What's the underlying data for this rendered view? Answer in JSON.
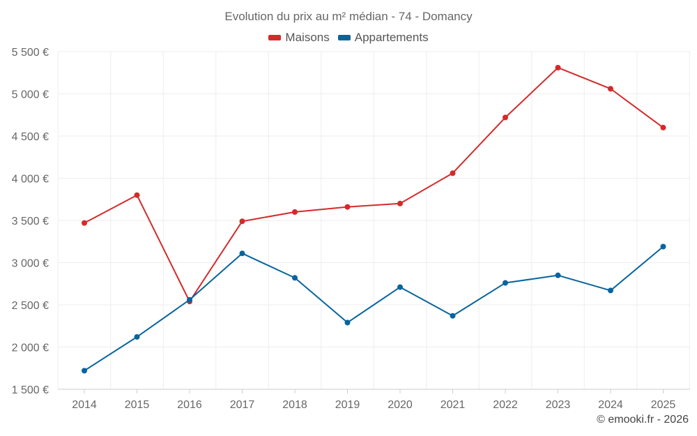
{
  "chart_data": {
    "type": "line",
    "title": "Evolution du prix au m² médian - 74 - Domancy",
    "xlabel": "",
    "ylabel": "",
    "categories": [
      "2014",
      "2015",
      "2016",
      "2017",
      "2018",
      "2019",
      "2020",
      "2021",
      "2022",
      "2023",
      "2024",
      "2025"
    ],
    "ylim": [
      1500,
      5500
    ],
    "yticks": [
      1500,
      2000,
      2500,
      3000,
      3500,
      4000,
      4500,
      5000,
      5500
    ],
    "ytick_labels": [
      "1 500 €",
      "2 000 €",
      "2 500 €",
      "3 000 €",
      "3 500 €",
      "4 000 €",
      "4 500 €",
      "5 000 €",
      "5 500 €"
    ],
    "series": [
      {
        "name": "Maisons",
        "color": "#d42a2a",
        "values": [
          3470,
          3800,
          2540,
          3490,
          3600,
          3660,
          3700,
          4060,
          4720,
          5310,
          5060,
          4600
        ]
      },
      {
        "name": "Appartements",
        "color": "#06649e",
        "values": [
          1720,
          2120,
          2560,
          3110,
          2820,
          2290,
          2710,
          2370,
          2760,
          2850,
          2670,
          3190
        ]
      }
    ],
    "legend_position": "top-center",
    "grid": true
  },
  "credit": "© emooki.fr - 2026"
}
